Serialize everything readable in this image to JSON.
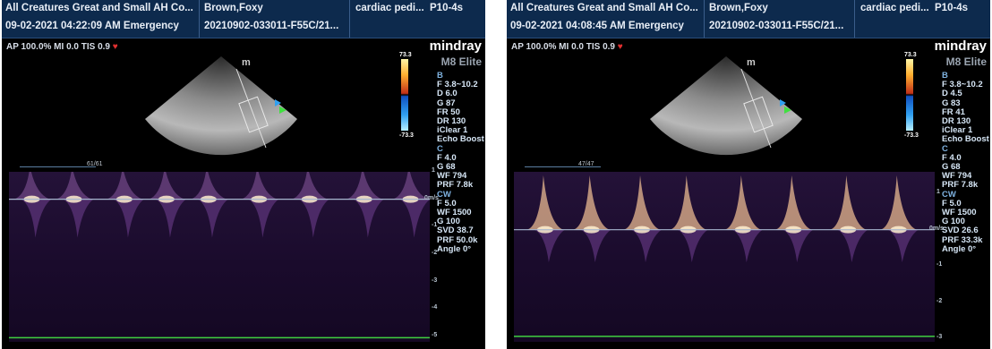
{
  "screens": [
    {
      "header": {
        "institution": "All Creatures Great and Small AH Co...",
        "datetime": "09-02-2021 04:22:09 AM Emergency",
        "patient": "Brown,Foxy",
        "study_id": "20210902-033011-F55C/21...",
        "exam": "cardiac pedi...",
        "probe": "P10-4s"
      },
      "acoustic": "AP 100.0%  MI 0.0 TIS 0.9",
      "brand": "mindray",
      "model": "M8 Elite",
      "color_scale": {
        "max": "73.3",
        "min": "-73.3"
      },
      "cine": "61/61",
      "params": [
        "B",
        "F 3.8~10.2",
        "D 6.0",
        "G 87",
        "FR 50",
        "DR 130",
        "iClear 1",
        "Echo Boost",
        "C",
        "F 4.0",
        "G 68",
        "WF 794",
        "PRF 7.8k",
        "CW",
        "F 5.0",
        "WF 1500",
        "G 100",
        "SVD 38.7",
        "PRF 50.0k",
        "Angle 0°"
      ],
      "section_headers": [
        "B",
        "C",
        "CW"
      ],
      "scale_ticks": [
        "1",
        "0m/s",
        "-1",
        "-2",
        "-3",
        "-4",
        "-5"
      ],
      "scale_top": 1,
      "scale_bottom": -5.2,
      "baseline_mps": 0,
      "green_line_mps": -5.05,
      "beats": [
        0.05,
        0.15,
        0.27,
        0.37,
        0.47,
        0.59,
        0.71,
        0.84,
        0.95
      ],
      "peak_mps": 1.2,
      "trough_mps": -1.4
    },
    {
      "header": {
        "institution": "All Creatures Great and Small AH Co...",
        "datetime": "09-02-2021 04:08:45 AM Emergency",
        "patient": "Brown,Foxy",
        "study_id": "20210902-033011-F55C/21...",
        "exam": "cardiac pedi...",
        "probe": "P10-4s"
      },
      "acoustic": "AP 100.0%  MI 0.0 TIS 0.9",
      "brand": "mindray",
      "model": "M8 Elite",
      "color_scale": {
        "max": "73.3",
        "min": "-73.3"
      },
      "cine": "47/47",
      "params": [
        "B",
        "F 3.8~10.2",
        "D 4.5",
        "G 83",
        "FR 41",
        "DR 130",
        "iClear 1",
        "Echo Boost",
        "C",
        "F 4.0",
        "G 68",
        "WF 794",
        "PRF 7.8k",
        "CW",
        "F 5.0",
        "WF 1500",
        "G 100",
        "SVD 26.6",
        "PRF 33.3k",
        "Angle 0°"
      ],
      "section_headers": [
        "B",
        "C",
        "CW"
      ],
      "scale_ticks": [
        "1",
        "0m/s",
        "-1",
        "-2",
        "-3"
      ],
      "scale_top": 1.6,
      "scale_bottom": -3.1,
      "baseline_mps": 0,
      "green_line_mps": -2.95,
      "beats": [
        0.07,
        0.18,
        0.3,
        0.41,
        0.54,
        0.66,
        0.79,
        0.91
      ],
      "peak_mps": 1.5,
      "trough_mps": -0.9
    }
  ]
}
